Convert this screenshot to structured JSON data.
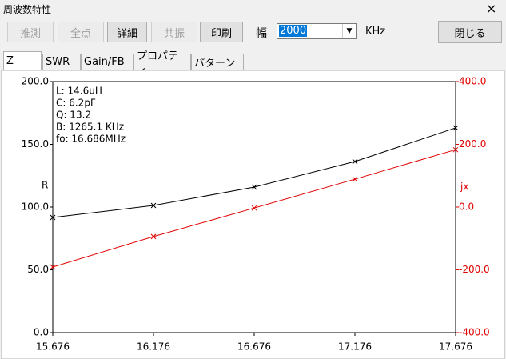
{
  "window": {
    "title": "周波数特性",
    "close": "×"
  },
  "toolbar": {
    "buttons": [
      "推測",
      "全点",
      "詳細",
      "共振",
      "印刷"
    ],
    "width_label": "幅",
    "width_value": "2000",
    "unit": "KHz",
    "close_button": "閉じる"
  },
  "tabs": [
    "Z",
    "SWR",
    "Gain/FB",
    "プロパティ",
    "パターン"
  ],
  "chart_data": {
    "type": "line",
    "annotations": [
      "L: 14.6uH",
      "C: 6.2pF",
      "Q: 13.2",
      "B: 1265.1 KHz",
      "fo: 16.686MHz"
    ],
    "x": [
      15.676,
      16.176,
      16.676,
      17.176,
      17.676
    ],
    "xlim": [
      15.676,
      17.676
    ],
    "xticks": [
      15.676,
      16.176,
      16.676,
      17.176,
      17.676
    ],
    "ylim": [
      0,
      200
    ],
    "yticks": [
      {
        "value": 0,
        "label": "0.0"
      },
      {
        "value": 50,
        "label": "50.0"
      },
      {
        "value": 100,
        "label": "100.0"
      },
      {
        "value": 150,
        "label": "150.0"
      },
      {
        "value": 200,
        "label": "200.0"
      }
    ],
    "y2lim": [
      -400,
      400
    ],
    "y2ticks": [
      {
        "value": -400,
        "label": "-400.0"
      },
      {
        "value": -200,
        "label": "-200.0"
      },
      {
        "value": 0,
        "label": "0.0"
      },
      {
        "value": 200,
        "label": "200.0"
      },
      {
        "value": 400,
        "label": "400.0"
      }
    ],
    "y2color": "#e00000",
    "series": [
      {
        "name": "R",
        "color": "#000000",
        "values": [
          91.7,
          101.3,
          115.9,
          136.3,
          163.1
        ]
      },
      {
        "name": "jx",
        "color": "#e00000",
        "axis": "y2",
        "values": [
          -191,
          -94,
          -3,
          89,
          183
        ]
      }
    ]
  }
}
